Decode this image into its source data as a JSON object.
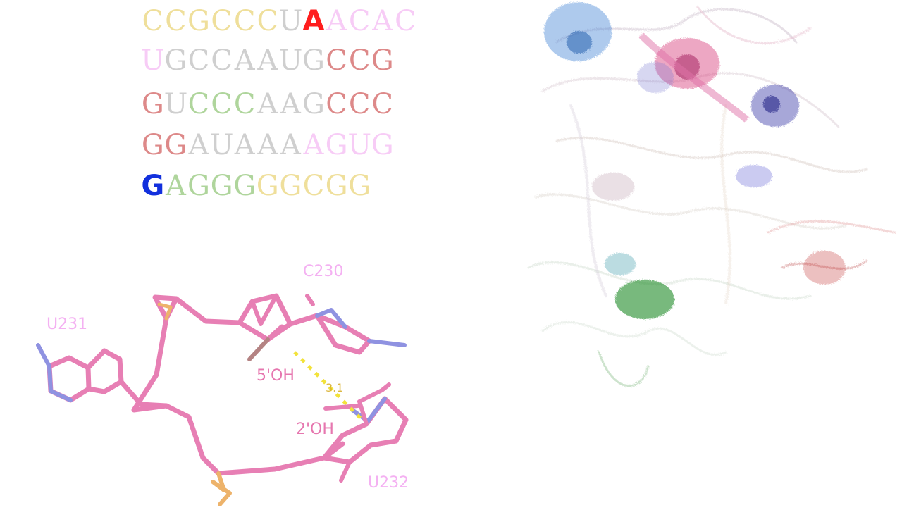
{
  "colors": {
    "yellow": "#e2c54a",
    "pink": "#f2a3f0",
    "gray": "#a8a8a8",
    "red": "#c32a2a",
    "green": "#6fb34d",
    "highlight_red": "#ff1e1e",
    "highlight_blue": "#1230dd",
    "stick_pink": "#e0559b",
    "stick_blue": "#6a6ed8",
    "stick_orange": "#e89a3a",
    "hbond_yellow": "#f2e23a"
  },
  "sequence": {
    "rows": [
      [
        {
          "b": "C",
          "c": "yellow"
        },
        {
          "b": "C",
          "c": "yellow"
        },
        {
          "b": "G",
          "c": "yellow"
        },
        {
          "b": "C",
          "c": "yellow"
        },
        {
          "b": "C",
          "c": "yellow"
        },
        {
          "b": "C",
          "c": "yellow"
        },
        {
          "b": "U",
          "c": "gray"
        },
        {
          "b": "A",
          "c": "highlight_red",
          "hl": true
        },
        {
          "b": "A",
          "c": "pink"
        },
        {
          "b": "C",
          "c": "pink"
        },
        {
          "b": "A",
          "c": "pink"
        },
        {
          "b": "C",
          "c": "pink"
        }
      ],
      [
        {
          "b": "U",
          "c": "pink"
        },
        {
          "b": "G",
          "c": "gray"
        },
        {
          "b": "C",
          "c": "gray"
        },
        {
          "b": "C",
          "c": "gray"
        },
        {
          "b": "A",
          "c": "gray"
        },
        {
          "b": "A",
          "c": "gray"
        },
        {
          "b": "U",
          "c": "gray"
        },
        {
          "b": "G",
          "c": "gray"
        },
        {
          "b": "C",
          "c": "red"
        },
        {
          "b": "C",
          "c": "red"
        },
        {
          "b": "G",
          "c": "red"
        }
      ],
      [
        {
          "b": "G",
          "c": "red"
        },
        {
          "b": "U",
          "c": "gray"
        },
        {
          "b": "C",
          "c": "green"
        },
        {
          "b": "C",
          "c": "green"
        },
        {
          "b": "C",
          "c": "green"
        },
        {
          "b": "A",
          "c": "gray"
        },
        {
          "b": "A",
          "c": "gray"
        },
        {
          "b": "G",
          "c": "gray"
        },
        {
          "b": "C",
          "c": "red"
        },
        {
          "b": "C",
          "c": "red"
        },
        {
          "b": "C",
          "c": "red"
        }
      ],
      [
        {
          "b": "G",
          "c": "red"
        },
        {
          "b": "G",
          "c": "red"
        },
        {
          "b": "A",
          "c": "gray"
        },
        {
          "b": "U",
          "c": "gray"
        },
        {
          "b": "A",
          "c": "gray"
        },
        {
          "b": "A",
          "c": "gray"
        },
        {
          "b": "A",
          "c": "gray"
        },
        {
          "b": "A",
          "c": "pink"
        },
        {
          "b": "G",
          "c": "pink"
        },
        {
          "b": "U",
          "c": "pink"
        },
        {
          "b": "G",
          "c": "pink"
        }
      ],
      [
        {
          "b": "G",
          "c": "highlight_blue",
          "hl": true
        },
        {
          "b": "A",
          "c": "green"
        },
        {
          "b": "G",
          "c": "green"
        },
        {
          "b": "G",
          "c": "green"
        },
        {
          "b": "G",
          "c": "green"
        },
        {
          "b": "G",
          "c": "yellow"
        },
        {
          "b": "G",
          "c": "yellow"
        },
        {
          "b": "C",
          "c": "yellow"
        },
        {
          "b": "G",
          "c": "yellow"
        },
        {
          "b": "G",
          "c": "yellow"
        }
      ]
    ]
  },
  "structure": {
    "labels": {
      "c230": "C230",
      "u231": "U231",
      "u232": "U232",
      "five_oh": "5'OH",
      "two_oh": "2'OH",
      "distance": "3.1"
    }
  }
}
